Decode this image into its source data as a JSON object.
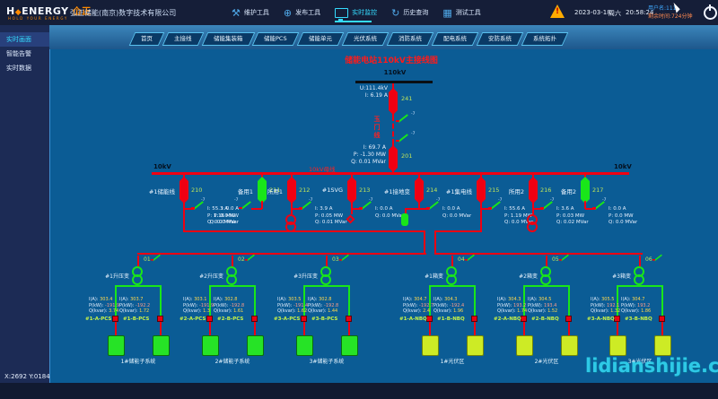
{
  "header": {
    "logo": {
      "left": "H",
      "diamond": "◆",
      "right": "ENERGY",
      "mark": "仚正",
      "tagline": "HOLD YOUR ENERGY"
    },
    "company": "弘正储能(南京)数字技术有限公司",
    "toolbar": [
      {
        "label": "维护工具",
        "icon": "wrench",
        "active": false
      },
      {
        "label": "发布工具",
        "icon": "globe",
        "active": false
      },
      {
        "label": "实时监控",
        "icon": "monitor",
        "active": true
      },
      {
        "label": "历史查询",
        "icon": "history",
        "active": false
      },
      {
        "label": "测试工具",
        "icon": "chip",
        "active": false
      }
    ],
    "icon_glyphs": {
      "wrench": "⚒",
      "globe": "⊕",
      "history": "↻",
      "chip": "▦"
    },
    "alarm_glyph": "!",
    "date": "2023-03-18",
    "weekday": "周六",
    "time": "20:58:24",
    "user": "用户名:111",
    "session": "剩余时间:724分钟"
  },
  "sidebar": {
    "items": [
      {
        "label": "实时画面",
        "active": true
      },
      {
        "label": "智能告警",
        "active": false
      },
      {
        "label": "实时数据",
        "active": false
      }
    ]
  },
  "tabs": [
    "首页",
    "主接线",
    "储能集装箱",
    "储能PCS",
    "储能单元",
    "光伏系统",
    "消防系统",
    "配电系统",
    "安防系统",
    "系统拓扑"
  ],
  "diagram": {
    "title": "储能电站110kV主接线图",
    "hv_bus_label": "110kV",
    "incomer": {
      "u": "U:111.4kV",
      "i": "I: 6.19 A",
      "breaker_top": "241",
      "line_name": "玉门线",
      "i2": "I: 69.7 A",
      "p2": "P: -1.30 MW",
      "q2": "Q: 0.01 MVar",
      "breaker_bottom": "201"
    },
    "mv_bus_label_left": "10kV",
    "mv_bus_label_right": "10kV",
    "mv_bus_name": "10kV母线",
    "switch_tag": "-7",
    "feeders": [
      {
        "name": "#1储能线",
        "code": "210",
        "color": "red",
        "m": [
          "I: 55.3 A",
          "P: 1.16 MW",
          "Q: 0.0  MVar"
        ],
        "device": "down-left"
      },
      {
        "name": "备用1",
        "code": "211",
        "color": "green",
        "m": [
          "I: 0.0 A",
          "P: 0.0 MW",
          "Q: 0.0 MVar"
        ],
        "device": "none"
      },
      {
        "name": "所用1",
        "code": "212",
        "color": "red",
        "m": [
          "I: 3.9  A",
          "P: 0.05 MW",
          "Q: 0.01 MVar"
        ],
        "device": "transformer"
      },
      {
        "name": "#1SVG",
        "code": "213",
        "color": "red",
        "m": [
          "I: 0.0 A",
          "Q: 0.0 MVar"
        ],
        "device": "svg"
      },
      {
        "name": "#1接地变",
        "code": "214",
        "color": "red",
        "m": [
          "I: 0.0 A",
          "Q: 0.0 MVar"
        ],
        "device": "grounding"
      },
      {
        "name": "#1集电线",
        "code": "215",
        "color": "red",
        "m": [
          "I: 55.6 A",
          "P: 1.19 MW",
          "Q: 0.0  MVar"
        ],
        "device": "down-right"
      },
      {
        "name": "所用2",
        "code": "216",
        "color": "red",
        "m": [
          "I: 3.6  A",
          "P: 0.03 MW",
          "Q: 0.02 MVar"
        ],
        "device": "transformer"
      },
      {
        "name": "备用2",
        "code": "217",
        "color": "green",
        "m": [
          "I: 0.0 A",
          "P: 0.0 MW",
          "Q: 0.0 MVar"
        ],
        "device": "none"
      }
    ],
    "meas_keys": {
      "i": "I(A):",
      "p": "P(kW):",
      "q": "Q(kvar):"
    },
    "left_groups": [
      {
        "tap": "01",
        "transformer": "#1升压变",
        "unit": "1#储能子系统",
        "branches": [
          {
            "label": "#1-A-PCS",
            "i": "303.4",
            "p": "-191.9",
            "q": "3.74"
          },
          {
            "label": "#1-B-PCS",
            "i": "303.7",
            "p": "-192.2",
            "q": "1.72"
          }
        ]
      },
      {
        "tap": "02",
        "transformer": "#2升压变",
        "unit": "2#储能子系统",
        "branches": [
          {
            "label": "#2-A-PCS",
            "i": "303.1",
            "p": "-191.9",
            "q": "1.3"
          },
          {
            "label": "#2-B-PCS",
            "i": "302.8",
            "p": "-192.8",
            "q": "1.61"
          }
        ]
      },
      {
        "tap": "03",
        "transformer": "#3升压变",
        "unit": "3#储能子系统",
        "branches": [
          {
            "label": "#3-A-PCS",
            "i": "303.5",
            "p": "-191.4",
            "q": "1.62"
          },
          {
            "label": "#3-B-PCS",
            "i": "302.8",
            "p": "-192.8",
            "q": "1.44"
          }
        ]
      }
    ],
    "right_groups": [
      {
        "tap": "04",
        "transformer": "#1箱变",
        "unit": "1#光伏区",
        "branches": [
          {
            "label": "#1-A-NBQ",
            "i": "304.7",
            "p": "-192.7",
            "q": "2.4"
          },
          {
            "label": "#1-B-NBQ",
            "i": "304.3",
            "p": "-192.4",
            "q": "1.96"
          }
        ]
      },
      {
        "tap": "05",
        "transformer": "#2箱变",
        "unit": "2#光伏区",
        "branches": [
          {
            "label": "#2-A-NBQ",
            "i": "304.3",
            "p": "193.2",
            "q": "1.74"
          },
          {
            "label": "#2-B-NBQ",
            "i": "304.5",
            "p": "193.4",
            "q": "1.52"
          }
        ]
      },
      {
        "tap": "06",
        "transformer": "#3箱变",
        "unit": "3#光伏区",
        "branches": [
          {
            "label": "#3-A-NBQ",
            "i": "305.5",
            "p": "192.1",
            "q": "1.32"
          },
          {
            "label": "#3-B-NBQ",
            "i": "304.7",
            "p": "193.2",
            "q": "1.86"
          }
        ]
      }
    ]
  },
  "statusbar": {
    "coords": "X:2692 Y:0184"
  },
  "watermark": "lidianshijie.com",
  "colors": {
    "accent_cyan": "#35dcff",
    "line_red": "#f00012",
    "device_green": "#19e619",
    "bg_main": "#0b5c95",
    "bg_header": "#151e38",
    "bg_sidebar": "#1c2b55",
    "battery_green": "#26e326",
    "pv_yellow": "#cdeb25",
    "value_yellow": "#ffd84d",
    "branch_lime": "#c8f346",
    "brand_orange": "#ff8a00"
  }
}
